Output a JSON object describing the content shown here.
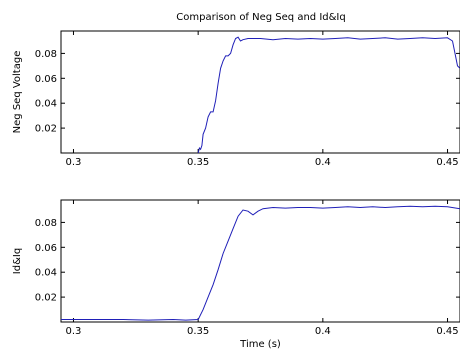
{
  "figure_title": "Comparison of Neg Seq and Id&Iq",
  "colors": {
    "line": "#1f1fb8",
    "axes": "#000000",
    "background": "#ffffff"
  },
  "chart_data": [
    {
      "type": "line",
      "title": "Comparison of Neg Seq and Id&Iq",
      "xlabel": "",
      "ylabel": "Neg Seq Voltage",
      "xlim": [
        0.295,
        0.455
      ],
      "ylim": [
        0.0,
        0.098
      ],
      "xticks": [
        0.3,
        0.35,
        0.4,
        0.45
      ],
      "xtick_labels": [
        "0.3",
        "0.35",
        "0.4",
        "0.45"
      ],
      "yticks": [
        0.02,
        0.04,
        0.06,
        0.08
      ],
      "ytick_labels": [
        "0.02",
        "0.04",
        "0.06",
        "0.08"
      ],
      "grid": false,
      "series": [
        {
          "values": [
            [
              0.35,
              0.0
            ],
            [
              0.3505,
              0.004
            ],
            [
              0.351,
              0.003
            ],
            [
              0.3515,
              0.006
            ],
            [
              0.352,
              0.015
            ],
            [
              0.353,
              0.02
            ],
            [
              0.354,
              0.029
            ],
            [
              0.355,
              0.033
            ],
            [
              0.356,
              0.033
            ],
            [
              0.357,
              0.042
            ],
            [
              0.358,
              0.056
            ],
            [
              0.359,
              0.068
            ],
            [
              0.36,
              0.074
            ],
            [
              0.361,
              0.078
            ],
            [
              0.362,
              0.078
            ],
            [
              0.363,
              0.08
            ],
            [
              0.364,
              0.087
            ],
            [
              0.365,
              0.092
            ],
            [
              0.366,
              0.093
            ],
            [
              0.367,
              0.09
            ],
            [
              0.368,
              0.091
            ],
            [
              0.37,
              0.092
            ],
            [
              0.375,
              0.092
            ],
            [
              0.38,
              0.091
            ],
            [
              0.385,
              0.092
            ],
            [
              0.39,
              0.0915
            ],
            [
              0.395,
              0.092
            ],
            [
              0.4,
              0.0915
            ],
            [
              0.405,
              0.092
            ],
            [
              0.41,
              0.0925
            ],
            [
              0.415,
              0.0915
            ],
            [
              0.42,
              0.092
            ],
            [
              0.425,
              0.0925
            ],
            [
              0.43,
              0.0915
            ],
            [
              0.435,
              0.092
            ],
            [
              0.44,
              0.0925
            ],
            [
              0.445,
              0.092
            ],
            [
              0.45,
              0.0925
            ],
            [
              0.452,
              0.09
            ],
            [
              0.453,
              0.08
            ],
            [
              0.454,
              0.07
            ],
            [
              0.455,
              0.068
            ]
          ]
        }
      ]
    },
    {
      "type": "line",
      "title": "",
      "xlabel": "Time (s)",
      "ylabel": "Id&Iq",
      "xlim": [
        0.295,
        0.455
      ],
      "ylim": [
        0.0,
        0.098
      ],
      "xticks": [
        0.3,
        0.35,
        0.4,
        0.45
      ],
      "xtick_labels": [
        "0.3",
        "0.35",
        "0.4",
        "0.45"
      ],
      "yticks": [
        0.02,
        0.04,
        0.06,
        0.08
      ],
      "ytick_labels": [
        "0.02",
        "0.04",
        "0.06",
        "0.08"
      ],
      "grid": false,
      "series": [
        {
          "values": [
            [
              0.295,
              0.002
            ],
            [
              0.3,
              0.002
            ],
            [
              0.31,
              0.002
            ],
            [
              0.32,
              0.002
            ],
            [
              0.33,
              0.0015
            ],
            [
              0.34,
              0.002
            ],
            [
              0.345,
              0.0015
            ],
            [
              0.35,
              0.002
            ],
            [
              0.352,
              0.01
            ],
            [
              0.354,
              0.02
            ],
            [
              0.356,
              0.03
            ],
            [
              0.358,
              0.042
            ],
            [
              0.36,
              0.055
            ],
            [
              0.362,
              0.065
            ],
            [
              0.364,
              0.075
            ],
            [
              0.366,
              0.085
            ],
            [
              0.368,
              0.09
            ],
            [
              0.37,
              0.089
            ],
            [
              0.372,
              0.086
            ],
            [
              0.374,
              0.089
            ],
            [
              0.376,
              0.091
            ],
            [
              0.38,
              0.092
            ],
            [
              0.385,
              0.0915
            ],
            [
              0.39,
              0.092
            ],
            [
              0.395,
              0.092
            ],
            [
              0.4,
              0.0915
            ],
            [
              0.405,
              0.092
            ],
            [
              0.41,
              0.0925
            ],
            [
              0.415,
              0.092
            ],
            [
              0.42,
              0.0925
            ],
            [
              0.425,
              0.092
            ],
            [
              0.43,
              0.0925
            ],
            [
              0.435,
              0.093
            ],
            [
              0.44,
              0.0925
            ],
            [
              0.445,
              0.093
            ],
            [
              0.45,
              0.0925
            ],
            [
              0.455,
              0.091
            ]
          ]
        }
      ]
    }
  ]
}
